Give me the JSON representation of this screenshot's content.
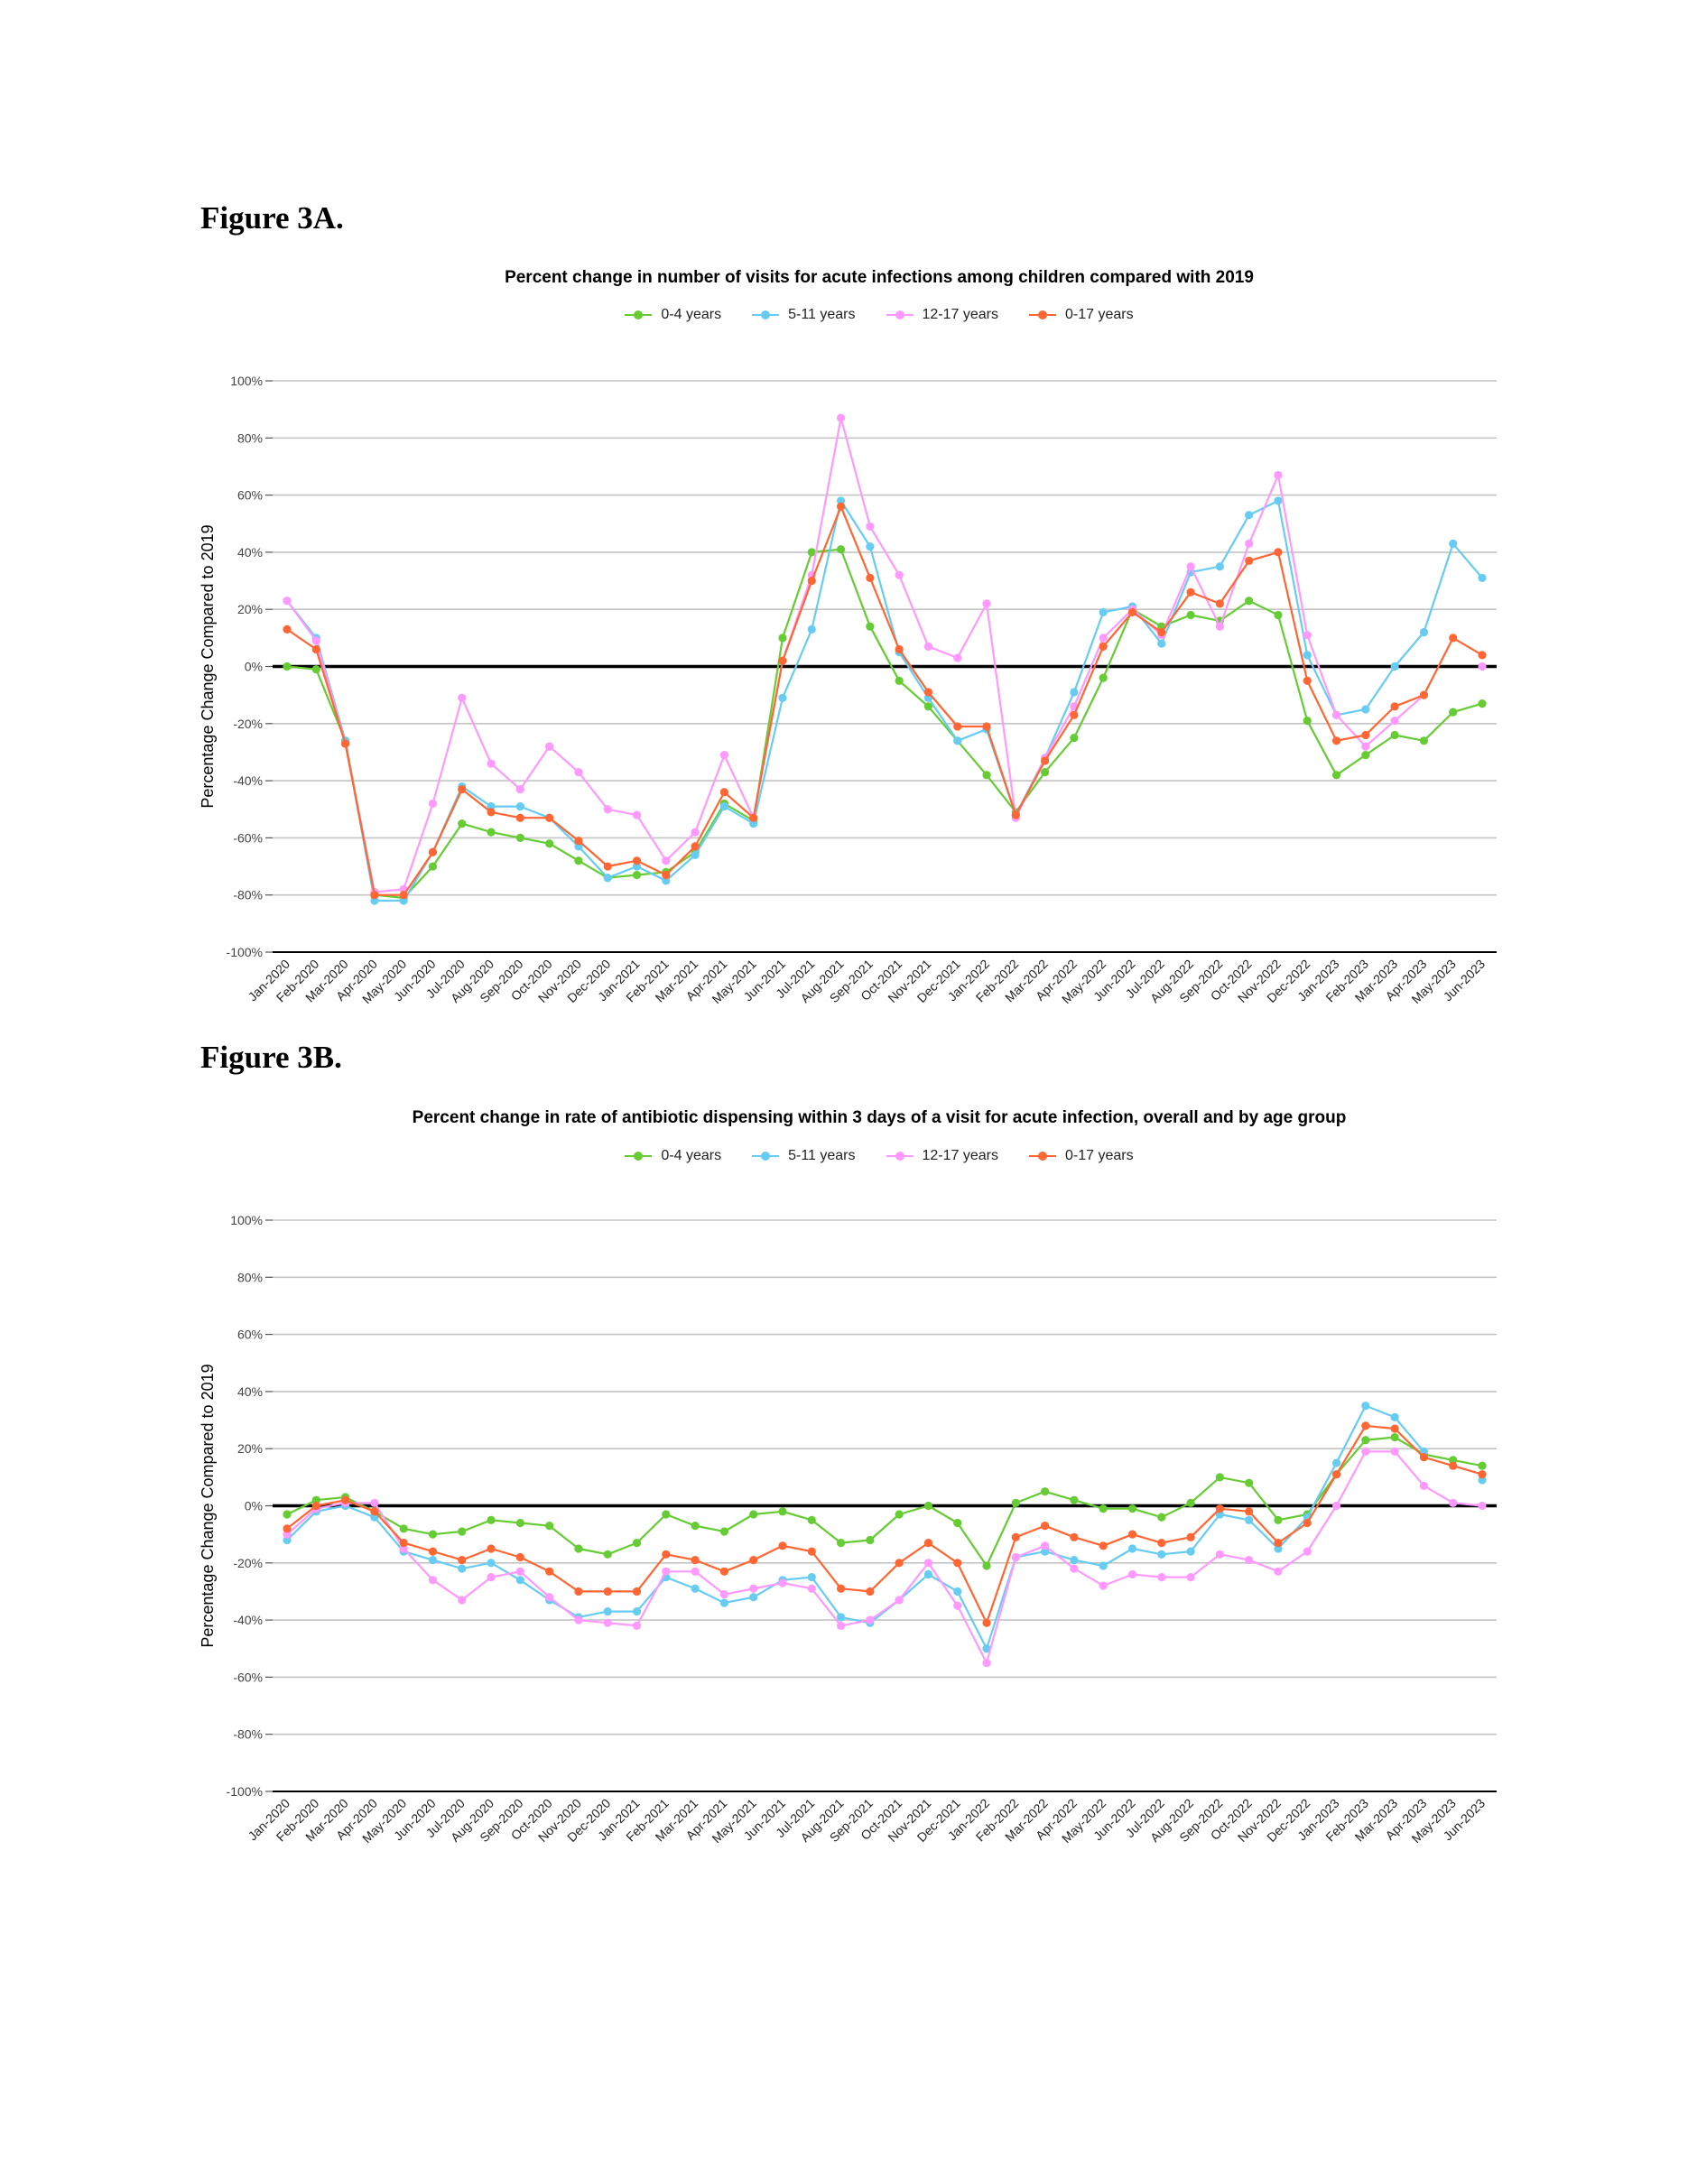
{
  "headings": [
    "Figure 3A.",
    "Figure 3B."
  ],
  "legend": [
    {
      "label": "0-4 years",
      "color": "#66cc33"
    },
    {
      "label": "5-11 years",
      "color": "#66ccf2"
    },
    {
      "label": "12-17 years",
      "color": "#ff99ff"
    },
    {
      "label": "0-17 years",
      "color": "#ff6633"
    }
  ],
  "chart_data": [
    {
      "type": "line",
      "title": "Percent change in number of visits for acute infections among children compared with 2019",
      "ylabel": "Percentage Change Compared to 2019",
      "xlabel": "",
      "ylim": [
        -100,
        100
      ],
      "yticks": [
        "100%",
        "80%",
        "60%",
        "40%",
        "20%",
        "0%",
        "-20%",
        "-40%",
        "-60%",
        "-80%",
        "-100%"
      ],
      "grid": true,
      "legend_position": "top",
      "categories": [
        "Jan-2020",
        "Feb-2020",
        "Mar-2020",
        "Apr-2020",
        "May-2020",
        "Jun-2020",
        "Jul-2020",
        "Aug-2020",
        "Sep-2020",
        "Oct-2020",
        "Nov-2020",
        "Dec-2020",
        "Jan-2021",
        "Feb-2021",
        "Mar-2021",
        "Apr-2021",
        "May-2021",
        "Jun-2021",
        "Jul-2021",
        "Aug-2021",
        "Sep-2021",
        "Oct-2021",
        "Nov-2021",
        "Dec-2021",
        "Jan-2022",
        "Feb-2022",
        "Mar-2022",
        "Apr-2022",
        "May-2022",
        "Jun-2022",
        "Jul-2022",
        "Aug-2022",
        "Sep-2022",
        "Oct-2022",
        "Nov-2022",
        "Dec-2022",
        "Jan-2023",
        "Feb-2023",
        "Mar-2023",
        "Apr-2023",
        "May-2023",
        "Jun-2023"
      ],
      "series": [
        {
          "name": "0-4 years",
          "values": [
            0,
            -1,
            -26,
            -80,
            -81,
            -70,
            -55,
            -58,
            -60,
            -62,
            -68,
            -74,
            -73,
            -72,
            -65,
            -48,
            -54,
            10,
            40,
            41,
            14,
            -5,
            -14,
            -26,
            -38,
            -51,
            -37,
            -25,
            -4,
            20,
            14,
            18,
            16,
            23,
            18,
            -19,
            -38,
            -31,
            -24,
            -26,
            -16,
            -13
          ]
        },
        {
          "name": "5-11 years",
          "values": [
            23,
            10,
            -26,
            -82,
            -82,
            -65,
            -42,
            -49,
            -49,
            -53,
            -63,
            -74,
            -70,
            -75,
            -66,
            -49,
            -55,
            -11,
            13,
            58,
            42,
            5,
            -11,
            -26,
            -22,
            -52,
            -32,
            -9,
            19,
            21,
            8,
            33,
            35,
            53,
            58,
            4,
            -17,
            -15,
            0,
            12,
            43,
            31
          ]
        },
        {
          "name": "12-17 years",
          "values": [
            23,
            9,
            -27,
            -79,
            -78,
            -48,
            -11,
            -34,
            -43,
            -28,
            -37,
            -50,
            -52,
            -68,
            -58,
            -31,
            -53,
            2,
            32,
            87,
            49,
            32,
            7,
            3,
            22,
            -53,
            -32,
            -14,
            10,
            20,
            11,
            35,
            14,
            43,
            67,
            11,
            -17,
            -28,
            -19,
            -10,
            null,
            0
          ]
        },
        {
          "name": "0-17 years",
          "values": [
            13,
            6,
            -27,
            -80,
            -80,
            -65,
            -43,
            -51,
            -53,
            -53,
            -61,
            -70,
            -68,
            -73,
            -63,
            -44,
            -53,
            2,
            30,
            56,
            31,
            6,
            -9,
            -21,
            -21,
            -52,
            -33,
            -17,
            7,
            19,
            12,
            26,
            22,
            37,
            40,
            -5,
            -26,
            -24,
            -14,
            -10,
            10,
            4
          ]
        }
      ]
    },
    {
      "type": "line",
      "title": "Percent change in rate of antibiotic dispensing within 3 days of a visit for acute infection, overall and by age group",
      "ylabel": "Percentage Change Compared to 2019",
      "xlabel": "",
      "ylim": [
        -100,
        100
      ],
      "yticks": [
        "100%",
        "80%",
        "60%",
        "40%",
        "20%",
        "0%",
        "-20%",
        "-40%",
        "-60%",
        "-80%",
        "-100%"
      ],
      "grid": true,
      "legend_position": "top",
      "categories": [
        "Jan-2020",
        "Feb-2020",
        "Mar-2020",
        "Apr-2020",
        "May-2020",
        "Jun-2020",
        "Jul-2020",
        "Aug-2020",
        "Sep-2020",
        "Oct-2020",
        "Nov-2020",
        "Dec-2020",
        "Jan-2021",
        "Feb-2021",
        "Mar-2021",
        "Apr-2021",
        "May-2021",
        "Jun-2021",
        "Jul-2021",
        "Aug-2021",
        "Sep-2021",
        "Oct-2021",
        "Nov-2021",
        "Dec-2021",
        "Jan-2022",
        "Feb-2022",
        "Mar-2022",
        "Apr-2022",
        "May-2022",
        "Jun-2022",
        "Jul-2022",
        "Aug-2022",
        "Sep-2022",
        "Oct-2022",
        "Nov-2022",
        "Dec-2022",
        "Jan-2023",
        "Feb-2023",
        "Mar-2023",
        "Apr-2023",
        "May-2023",
        "Jun-2023"
      ],
      "series": [
        {
          "name": "0-4 years",
          "values": [
            -3,
            2,
            3,
            -2,
            -8,
            -10,
            -9,
            -5,
            -6,
            -7,
            -15,
            -17,
            -13,
            -3,
            -7,
            -9,
            -3,
            -2,
            -5,
            -13,
            -12,
            -3,
            0,
            -6,
            -21,
            1,
            5,
            2,
            -1,
            -1,
            -4,
            1,
            10,
            8,
            -5,
            -3,
            11,
            23,
            24,
            18,
            16,
            14
          ]
        },
        {
          "name": "5-11 years",
          "values": [
            -12,
            -2,
            0,
            -4,
            -16,
            -19,
            -22,
            -20,
            -26,
            -33,
            -39,
            -37,
            -37,
            -25,
            -29,
            -34,
            -32,
            -26,
            -25,
            -39,
            -41,
            -33,
            -24,
            -30,
            -50,
            -18,
            -16,
            -19,
            -21,
            -15,
            -17,
            -16,
            -3,
            -5,
            -15,
            -4,
            15,
            35,
            31,
            19,
            null,
            9
          ]
        },
        {
          "name": "12-17 years",
          "values": [
            -10,
            -1,
            1,
            1,
            -15,
            -26,
            -33,
            -25,
            -23,
            -32,
            -40,
            -41,
            -42,
            -23,
            -23,
            -31,
            -29,
            -27,
            -29,
            -42,
            -40,
            -33,
            -20,
            -35,
            -55,
            -18,
            -14,
            -22,
            -28,
            -24,
            -25,
            -25,
            -17,
            -19,
            -23,
            -16,
            0,
            19,
            19,
            7,
            1,
            0
          ]
        },
        {
          "name": "0-17 years",
          "values": [
            -8,
            0,
            2,
            -2,
            -13,
            -16,
            -19,
            -15,
            -18,
            -23,
            -30,
            -30,
            -30,
            -17,
            -19,
            -23,
            -19,
            -14,
            -16,
            -29,
            -30,
            -20,
            -13,
            -20,
            -41,
            -11,
            -7,
            -11,
            -14,
            -10,
            -13,
            -11,
            -1,
            -2,
            -13,
            -6,
            11,
            28,
            27,
            17,
            14,
            11
          ]
        }
      ]
    }
  ]
}
